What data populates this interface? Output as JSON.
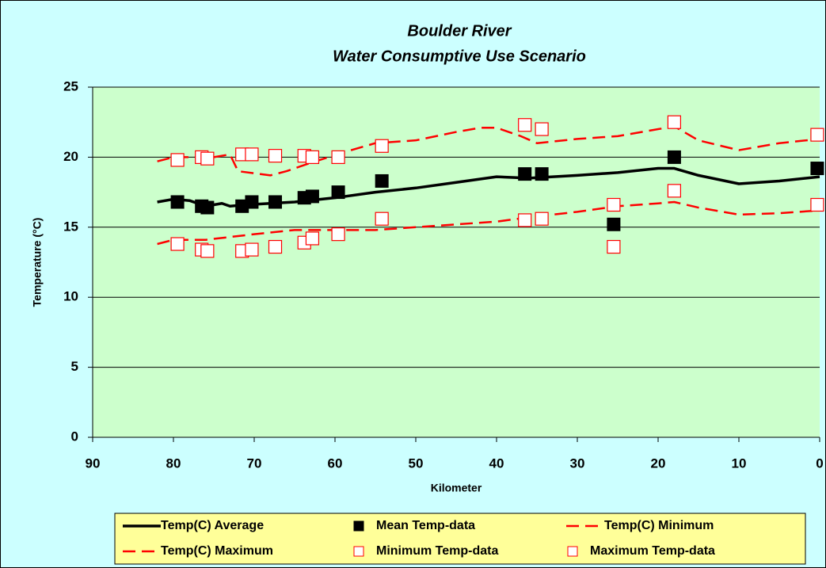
{
  "chart_data": {
    "type": "line",
    "title": "Boulder River",
    "subtitle": "Water Consumptive Use Scenario",
    "x_label": "Kilometer",
    "y_label": "Temperature (°C)",
    "xlim": [
      90,
      0
    ],
    "ylim": [
      0,
      25
    ],
    "xticks": [
      90,
      80,
      70,
      60,
      50,
      40,
      30,
      20,
      10,
      0
    ],
    "yticks": [
      0,
      5,
      10,
      15,
      20,
      25
    ],
    "grid": true,
    "legend": "bottom",
    "series": [
      {
        "name": "Temp(C) Average",
        "color": "#000000",
        "style": "solid",
        "x": [
          82,
          80,
          78,
          76,
          74,
          73,
          71,
          68,
          65,
          60,
          55,
          50,
          45,
          40,
          36,
          30,
          25,
          20,
          18,
          15,
          10,
          5,
          0
        ],
        "values": [
          16.8,
          17.0,
          16.9,
          16.5,
          16.7,
          16.5,
          16.6,
          16.7,
          16.8,
          17.1,
          17.5,
          17.8,
          18.2,
          18.6,
          18.5,
          18.7,
          18.9,
          19.2,
          19.2,
          18.7,
          18.1,
          18.3,
          18.6
        ]
      },
      {
        "name": "Mean Temp-data",
        "color": "#000000",
        "style": "filled",
        "x": [
          79.5,
          76.5,
          75.8,
          71.5,
          70.3,
          67.4,
          63.8,
          62.8,
          59.6,
          54.2,
          36.5,
          34.4,
          25.5,
          18,
          0.3
        ],
        "values": [
          16.8,
          16.5,
          16.4,
          16.5,
          16.8,
          16.8,
          17.1,
          17.2,
          17.5,
          18.3,
          18.8,
          18.8,
          15.2,
          20.0,
          19.2
        ]
      },
      {
        "name": "Temp(C) Minimum",
        "color": "#ff0000",
        "style": "dashed",
        "x": [
          82,
          80,
          76,
          70,
          65,
          55,
          50,
          40,
          36,
          30,
          25,
          20,
          18,
          15,
          10,
          5,
          0
        ],
        "values": [
          13.8,
          14.1,
          14.1,
          14.5,
          14.8,
          14.8,
          15.0,
          15.4,
          15.7,
          16.1,
          16.5,
          16.7,
          16.8,
          16.4,
          15.9,
          16.0,
          16.2
        ]
      },
      {
        "name": "Temp(C) Maximum",
        "color": "#ff0000",
        "style": "dashed",
        "x": [
          82,
          80,
          75,
          73,
          72,
          68,
          66,
          63,
          58,
          55,
          50,
          45,
          42,
          40,
          37,
          35,
          30,
          25,
          20,
          18,
          15,
          10,
          5,
          0
        ],
        "values": [
          19.7,
          20.0,
          20.0,
          20.2,
          19.0,
          18.7,
          19.0,
          19.6,
          20.5,
          21.0,
          21.2,
          21.8,
          22.1,
          22.1,
          21.5,
          21.0,
          21.3,
          21.5,
          22.0,
          22.2,
          21.2,
          20.5,
          21.0,
          21.3
        ]
      },
      {
        "name": "Minimum Temp-data",
        "color": "#ff0000",
        "style": "hollow",
        "x": [
          79.5,
          76.5,
          75.8,
          71.5,
          70.3,
          67.4,
          63.8,
          62.8,
          59.6,
          54.2,
          36.5,
          34.4,
          25.5,
          18,
          0.3
        ],
        "values": [
          13.8,
          13.4,
          13.3,
          13.3,
          13.4,
          13.6,
          13.9,
          14.2,
          14.5,
          15.6,
          15.5,
          15.6,
          13.6,
          17.6,
          16.6
        ]
      },
      {
        "name": "Maximum Temp-data",
        "color": "#ff0000",
        "style": "hollow",
        "x": [
          79.5,
          76.5,
          75.8,
          71.5,
          70.3,
          67.4,
          63.8,
          62.8,
          59.6,
          54.2,
          36.5,
          34.4,
          25.5,
          18,
          0.3
        ],
        "values": [
          19.8,
          20.0,
          19.9,
          20.2,
          20.2,
          20.1,
          20.1,
          20.0,
          20.0,
          20.8,
          22.3,
          22.0,
          16.6,
          22.5,
          21.6
        ]
      }
    ]
  }
}
